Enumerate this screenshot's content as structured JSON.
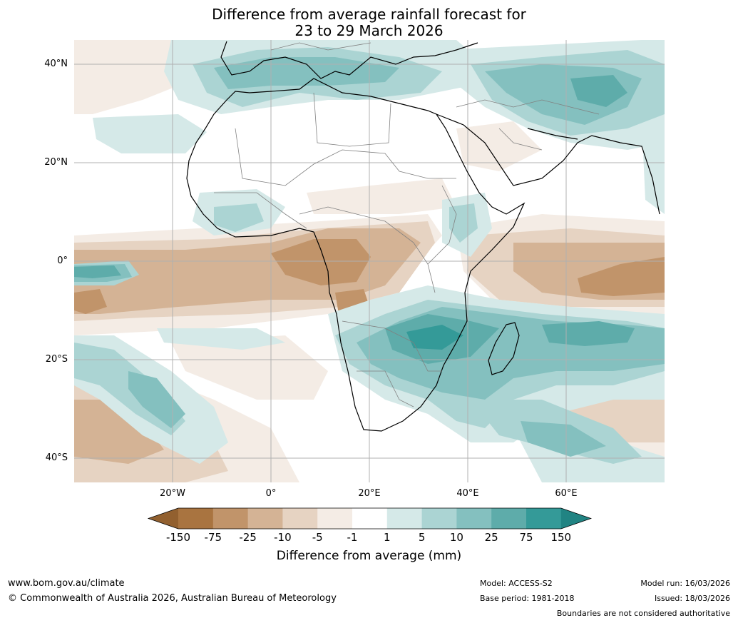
{
  "title": {
    "line1": "Difference from average rainfall forecast for",
    "line2": "23 to 29 March 2026"
  },
  "map": {
    "latitude_labels": [
      "40°N",
      "20°N",
      "0°",
      "20°S",
      "40°S"
    ],
    "longitude_labels": [
      "20°W",
      "0°",
      "20°E",
      "40°E",
      "60°E"
    ]
  },
  "colorbar": {
    "ticks": [
      "-150",
      "-75",
      "-25",
      "-10",
      "-5",
      "-1",
      "1",
      "5",
      "10",
      "25",
      "75",
      "150"
    ],
    "colors": [
      "#a97440",
      "#c1946a",
      "#d4b395",
      "#e6d3c2",
      "#f4ece5",
      "#ffffff",
      "#d5e9e8",
      "#abd4d3",
      "#84c0bf",
      "#5eacaa",
      "#349a98",
      "#268582"
    ],
    "low_extend_color": "#92602f",
    "high_extend_color": "#218483",
    "label": "Difference from average (mm)"
  },
  "footer": {
    "website": "www.bom.gov.au/climate",
    "copyright": "© Commonwealth of Australia 2026, Australian Bureau of Meteorology",
    "model": "Model: ACCESS-S2",
    "base_period": "Base period: 1981-2018",
    "model_run": "Model run: 16/03/2026",
    "issued": "Issued: 18/03/2026",
    "disclaimer": "Boundaries are not considered authoritative"
  }
}
